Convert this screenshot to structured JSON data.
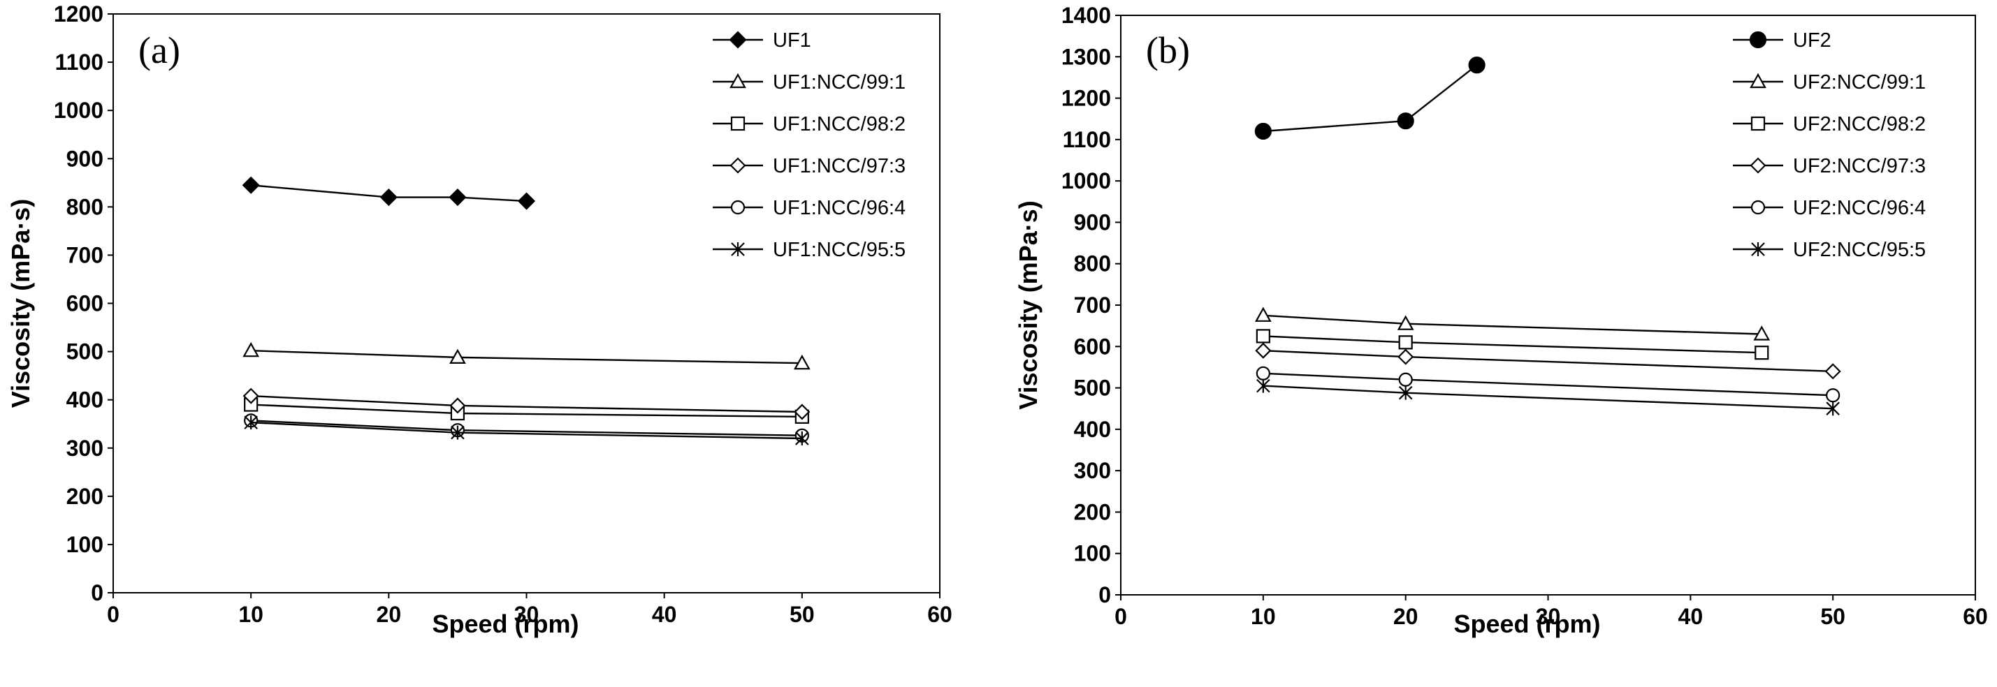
{
  "chart_data": [
    {
      "type": "line",
      "panel_label": "(a)",
      "xlabel": "Speed (rpm)",
      "ylabel": "Viscosity (mPa·s)",
      "xlim": [
        0,
        60
      ],
      "ylim": [
        0,
        1200
      ],
      "x_ticks": [
        0,
        10,
        20,
        30,
        40,
        50,
        60
      ],
      "y_ticks": [
        0,
        100,
        200,
        300,
        400,
        500,
        600,
        700,
        800,
        900,
        1000,
        1100,
        1200
      ],
      "grid": false,
      "legend_position": "top-right",
      "series": [
        {
          "name": "UF1",
          "marker": "diamond-filled",
          "x": [
            10,
            20,
            25,
            30
          ],
          "y": [
            845,
            820,
            820,
            812
          ]
        },
        {
          "name": "UF1:NCC/99:1",
          "marker": "triangle-open",
          "x": [
            10,
            25,
            50
          ],
          "y": [
            502,
            488,
            476
          ]
        },
        {
          "name": "UF1:NCC/98:2",
          "marker": "square-open",
          "x": [
            10,
            25,
            50
          ],
          "y": [
            390,
            372,
            365
          ]
        },
        {
          "name": "UF1:NCC/97:3",
          "marker": "diamond-open",
          "x": [
            10,
            25,
            50
          ],
          "y": [
            408,
            388,
            375
          ]
        },
        {
          "name": "UF1:NCC/96:4",
          "marker": "circle-open",
          "x": [
            10,
            25,
            50
          ],
          "y": [
            357,
            337,
            326
          ]
        },
        {
          "name": "UF1:NCC/95:5",
          "marker": "asterisk",
          "x": [
            10,
            25,
            50
          ],
          "y": [
            353,
            332,
            320
          ]
        }
      ]
    },
    {
      "type": "line",
      "panel_label": "(b)",
      "xlabel": "Speed (rpm)",
      "ylabel": "Viscosity (mPa·s)",
      "xlim": [
        0,
        60
      ],
      "ylim": [
        0,
        1400
      ],
      "x_ticks": [
        0,
        10,
        20,
        30,
        40,
        50,
        60
      ],
      "y_ticks": [
        0,
        100,
        200,
        300,
        400,
        500,
        600,
        700,
        800,
        900,
        1000,
        1100,
        1200,
        1300,
        1400
      ],
      "grid": false,
      "legend_position": "top-right",
      "series": [
        {
          "name": "UF2",
          "marker": "circle-filled",
          "x": [
            10,
            20,
            25
          ],
          "y": [
            1120,
            1145,
            1280
          ]
        },
        {
          "name": "UF2:NCC/99:1",
          "marker": "triangle-open",
          "x": [
            10,
            20,
            45
          ],
          "y": [
            675,
            655,
            630
          ]
        },
        {
          "name": "UF2:NCC/98:2",
          "marker": "square-open",
          "x": [
            10,
            20,
            45
          ],
          "y": [
            625,
            610,
            585
          ]
        },
        {
          "name": "UF2:NCC/97:3",
          "marker": "diamond-open",
          "x": [
            10,
            20,
            50
          ],
          "y": [
            590,
            575,
            540
          ]
        },
        {
          "name": "UF2:NCC/96:4",
          "marker": "circle-open",
          "x": [
            10,
            20,
            50
          ],
          "y": [
            535,
            520,
            482
          ]
        },
        {
          "name": "UF2:NCC/95:5",
          "marker": "asterisk",
          "x": [
            10,
            20,
            50
          ],
          "y": [
            505,
            488,
            450
          ]
        }
      ]
    }
  ]
}
